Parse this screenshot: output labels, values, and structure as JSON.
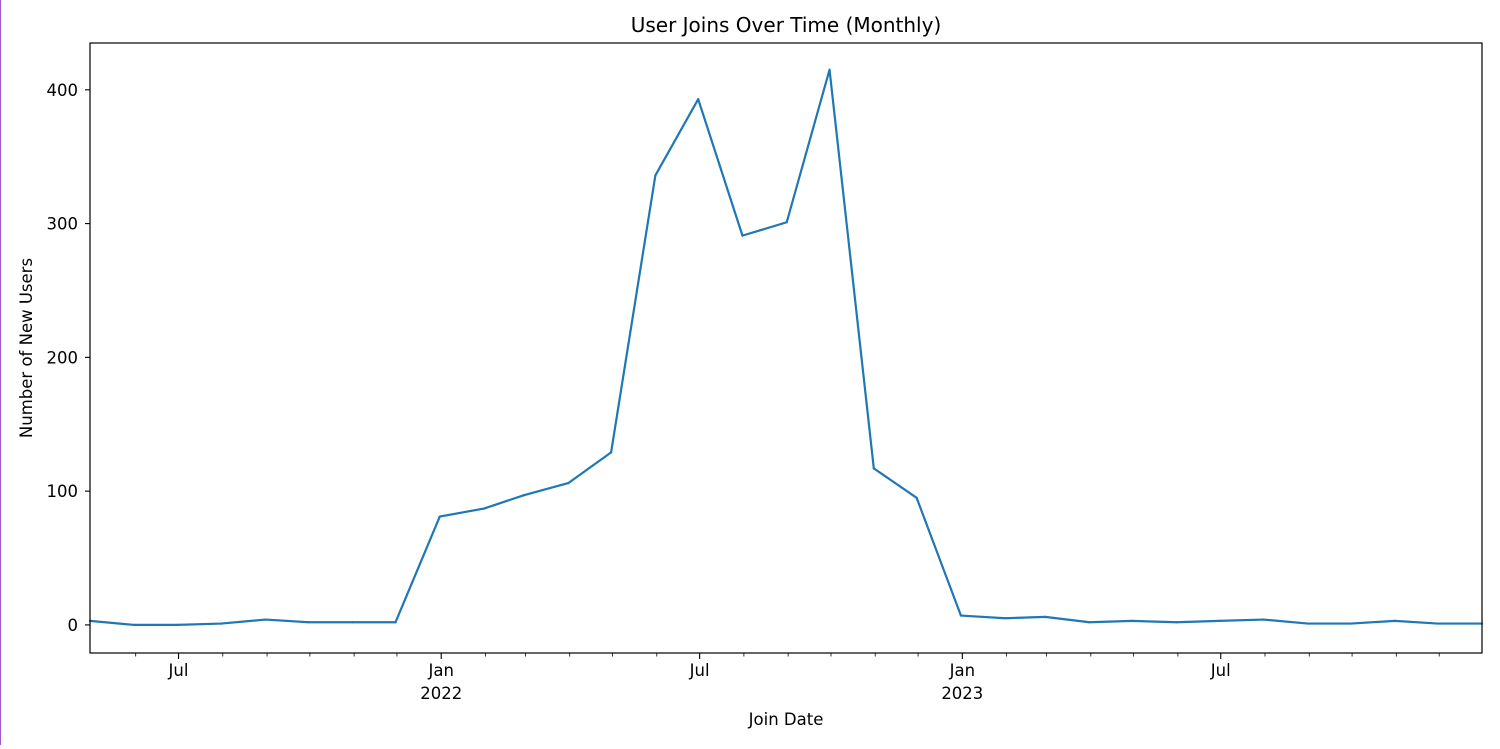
{
  "colors": {
    "line": "#1f77b4",
    "axes": "#000000",
    "background": "#ffffff",
    "frame_edge": "#a05ac8"
  },
  "chart_data": {
    "type": "line",
    "title": "User Joins Over Time (Monthly)",
    "xlabel": "Join Date",
    "ylabel": "Number of New Users",
    "grid": false,
    "legend": "none",
    "xlim": [
      "2021-04-30",
      "2023-12-31"
    ],
    "ylim": [
      -21,
      435
    ],
    "y_ticks": [
      0,
      100,
      200,
      300,
      400
    ],
    "y_tick_labels": [
      "0",
      "100",
      "200",
      "300",
      "400"
    ],
    "x_major_ticks": [
      {
        "date": "2021-07-01",
        "label": "Jul",
        "year": ""
      },
      {
        "date": "2022-01-01",
        "label": "Jan",
        "year": "2022"
      },
      {
        "date": "2022-07-01",
        "label": "Jul",
        "year": ""
      },
      {
        "date": "2023-01-01",
        "label": "Jan",
        "year": "2023"
      },
      {
        "date": "2023-07-01",
        "label": "Jul",
        "year": ""
      }
    ],
    "x_minor_ticks": [
      "2021-06-01",
      "2021-08-01",
      "2021-09-01",
      "2021-10-01",
      "2021-11-01",
      "2021-12-01",
      "2022-02-01",
      "2022-03-01",
      "2022-04-01",
      "2022-05-01",
      "2022-06-01",
      "2022-08-01",
      "2022-09-01",
      "2022-10-01",
      "2022-11-01",
      "2022-12-01",
      "2023-02-01",
      "2023-03-01",
      "2023-04-01",
      "2023-05-01",
      "2023-06-01",
      "2023-08-01",
      "2023-09-01",
      "2023-10-01",
      "2023-11-01",
      "2023-12-01"
    ],
    "series": [
      {
        "x": [
          "2021-04-30",
          "2021-05-31",
          "2021-06-30",
          "2021-07-31",
          "2021-08-31",
          "2021-09-30",
          "2021-10-31",
          "2021-11-30",
          "2021-12-31",
          "2022-01-31",
          "2022-02-28",
          "2022-03-31",
          "2022-04-30",
          "2022-05-31",
          "2022-06-30",
          "2022-07-31",
          "2022-08-31",
          "2022-09-30",
          "2022-10-31",
          "2022-11-30",
          "2022-12-31",
          "2023-01-31",
          "2023-02-28",
          "2023-03-31",
          "2023-04-30",
          "2023-05-31",
          "2023-06-30",
          "2023-07-31",
          "2023-08-31",
          "2023-09-30",
          "2023-10-31",
          "2023-11-30",
          "2023-12-31"
        ],
        "values": [
          3,
          0,
          0,
          1,
          4,
          2,
          2,
          2,
          81,
          87,
          97,
          106,
          129,
          336,
          393,
          291,
          301,
          415,
          117,
          95,
          7,
          5,
          6,
          2,
          3,
          2,
          3,
          4,
          1,
          1,
          3,
          1,
          1
        ]
      }
    ]
  }
}
